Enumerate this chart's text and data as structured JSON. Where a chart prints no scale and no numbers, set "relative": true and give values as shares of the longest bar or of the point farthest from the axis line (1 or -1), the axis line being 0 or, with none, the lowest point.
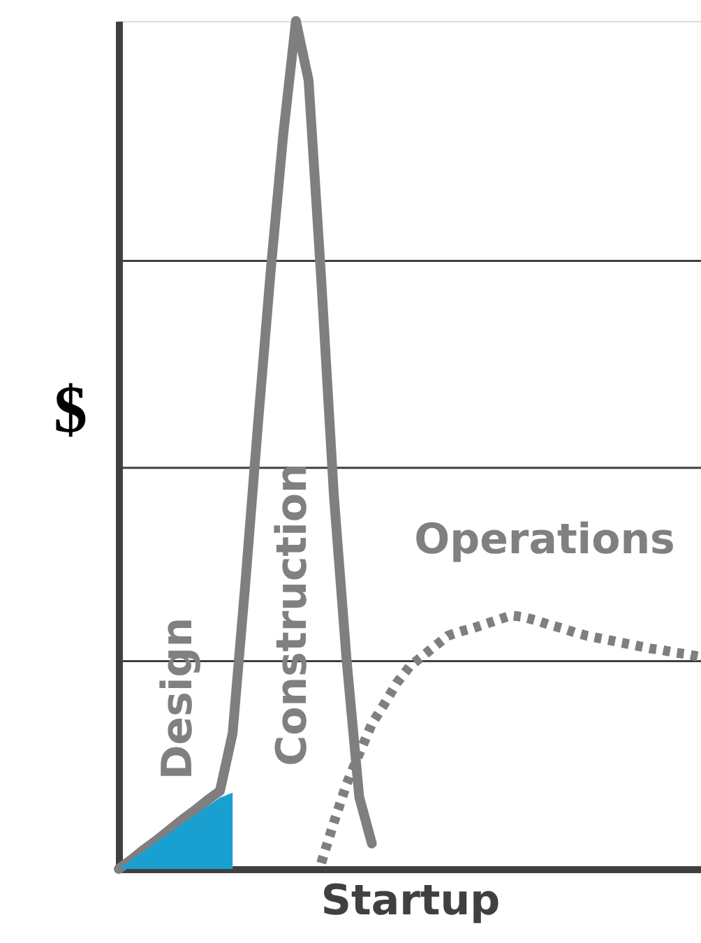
{
  "chart_data": {
    "type": "line",
    "relative": true,
    "xlabel": "Startup",
    "ylabel": "$",
    "tick_labels": false,
    "categories": [
      null,
      null,
      null,
      null,
      null,
      null,
      null,
      null,
      null,
      null,
      null,
      null,
      null,
      null,
      null,
      null,
      null,
      null,
      null,
      null,
      null,
      null,
      null,
      null,
      null,
      null,
      null,
      null,
      null,
      null,
      null,
      null,
      null,
      null,
      null,
      null,
      null,
      null,
      null,
      null,
      null,
      null,
      null,
      null,
      null,
      null,
      null
    ],
    "series": [
      {
        "type": "area",
        "color": "#1aa0d0",
        "values": [
          0,
          0.011,
          0.021,
          0.032,
          0.042,
          0.053,
          0.063,
          0.074,
          0.084,
          0.09,
          null,
          null,
          null,
          null,
          null,
          null,
          null,
          null,
          null,
          null,
          null,
          null,
          null,
          null,
          null,
          null,
          null,
          null,
          null,
          null,
          null,
          null,
          null,
          null,
          null,
          null,
          null,
          null,
          null,
          null,
          null,
          null,
          null,
          null,
          null,
          null,
          null
        ]
      },
      {
        "color": "#7f7f7f",
        "line_style": "solid",
        "values": [
          0,
          0.011,
          0.023,
          0.034,
          0.046,
          0.058,
          0.069,
          0.081,
          0.092,
          0.16,
          0.336,
          0.524,
          0.704,
          0.866,
          1,
          0.93,
          0.695,
          0.44,
          0.247,
          0.085,
          0.03,
          null,
          null,
          null,
          null,
          null,
          null,
          null,
          null,
          null,
          null,
          null,
          null,
          null,
          null,
          null,
          null,
          null,
          null,
          null,
          null,
          null,
          null,
          null,
          null,
          null,
          null
        ]
      },
      {
        "color": "#7f7f7f",
        "line_style": "dotted",
        "values": [
          null,
          null,
          null,
          null,
          null,
          null,
          null,
          null,
          null,
          null,
          null,
          null,
          null,
          null,
          null,
          null,
          0.007,
          0.055,
          0.1,
          0.136,
          0.171,
          0.195,
          0.22,
          0.239,
          0.251,
          0.263,
          0.275,
          0.28,
          0.284,
          0.289,
          0.294,
          0.299,
          0.297,
          0.293,
          0.288,
          0.284,
          0.279,
          0.275,
          0.272,
          0.269,
          0.266,
          0.263,
          0.26,
          0.258,
          0.255,
          0.253,
          0.25
        ]
      }
    ],
    "ref_lines": [
      {
        "axis": "y",
        "value": 0.717,
        "color": "#404040"
      },
      {
        "axis": "y",
        "value": 0.473,
        "color": "#404040"
      },
      {
        "axis": "y",
        "value": 0.245,
        "color": "#404040"
      }
    ],
    "annotations": [
      "Design",
      "Construction",
      "Operations"
    ]
  }
}
